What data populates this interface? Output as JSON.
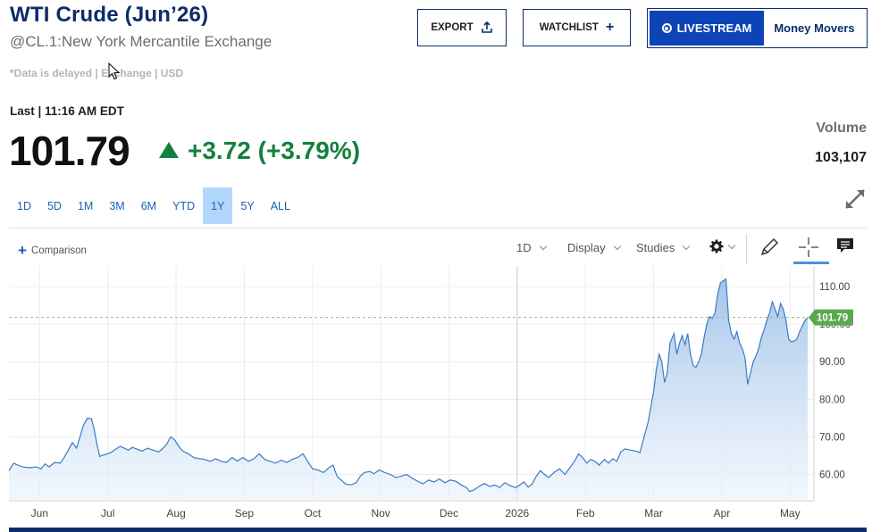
{
  "header": {
    "title": "WTI Crude (Jun’26)",
    "subtitle": "@CL.1:New York Mercantile Exchange",
    "delayed_note": "*Data is delayed | Exchange | USD"
  },
  "actions": {
    "export_label": "EXPORT",
    "watchlist_label": "WATCHLIST",
    "livestream_label": "LIVESTREAM",
    "money_movers_label": "Money Movers"
  },
  "quote": {
    "last_label": "Last | 11:16 AM EDT",
    "price": "101.79",
    "change": "+3.72 (+3.79%)",
    "volume_label": "Volume",
    "volume_value": "103,107",
    "up_color": "#15803d"
  },
  "ranges": [
    "1D",
    "5D",
    "1M",
    "3M",
    "6M",
    "YTD",
    "1Y",
    "5Y",
    "ALL"
  ],
  "active_range": "1Y",
  "toolbar": {
    "comparison_label": "Comparison",
    "interval_label": "1D",
    "display_label": "Display",
    "studies_label": "Studies"
  },
  "icons": {
    "export": "upload-icon",
    "watchlist": "plus-icon",
    "live": "radio-icon",
    "expand": "expand-icon",
    "settings": "gear-icon",
    "draw": "pencil-icon",
    "crosshair": "crosshair-icon",
    "comment": "comment-icon"
  },
  "chart_data": {
    "type": "area",
    "title": "",
    "xlabel": "",
    "ylabel": "",
    "ylim": [
      53,
      115
    ],
    "y_ticks": [
      "110.00",
      "100.00",
      "90.00",
      "80.00",
      "70.00",
      "60.00"
    ],
    "y_tick_values": [
      110,
      100,
      90,
      80,
      70,
      60
    ],
    "x_ticks": [
      "Jun",
      "Jul",
      "Aug",
      "Sep",
      "Oct",
      "Nov",
      "Dec",
      "2026",
      "Feb",
      "Mar",
      "Apr",
      "May"
    ],
    "x_tick_months": [
      1,
      2,
      3,
      4,
      5,
      6,
      7,
      8,
      9,
      10,
      11,
      12
    ],
    "x_month_index_range": [
      0.55,
      12.35
    ],
    "x_unit_note": "x values are months elapsed since May 1 2025",
    "last_value": 101.79,
    "last_value_label": "101.79",
    "series": [
      {
        "name": "",
        "color": "#3a7bc4",
        "points": [
          [
            0.55,
            61
          ],
          [
            0.62,
            63
          ],
          [
            0.68,
            62.5
          ],
          [
            0.75,
            62
          ],
          [
            0.85,
            61.8
          ],
          [
            0.95,
            62
          ],
          [
            1.02,
            61.5
          ],
          [
            1.08,
            62.8
          ],
          [
            1.14,
            62
          ],
          [
            1.22,
            63.2
          ],
          [
            1.3,
            63
          ],
          [
            1.36,
            64.5
          ],
          [
            1.42,
            66.5
          ],
          [
            1.48,
            68.5
          ],
          [
            1.54,
            67
          ],
          [
            1.6,
            70.5
          ],
          [
            1.64,
            73
          ],
          [
            1.7,
            75
          ],
          [
            1.76,
            74.8
          ],
          [
            1.8,
            72
          ],
          [
            1.84,
            68
          ],
          [
            1.88,
            64.8
          ],
          [
            1.94,
            65.2
          ],
          [
            2.0,
            65.5
          ],
          [
            2.06,
            66
          ],
          [
            2.12,
            66.8
          ],
          [
            2.18,
            67.5
          ],
          [
            2.24,
            67
          ],
          [
            2.3,
            66.5
          ],
          [
            2.36,
            67.2
          ],
          [
            2.42,
            66.8
          ],
          [
            2.5,
            66.2
          ],
          [
            2.58,
            67
          ],
          [
            2.66,
            66.5
          ],
          [
            2.74,
            66
          ],
          [
            2.8,
            66.8
          ],
          [
            2.86,
            68
          ],
          [
            2.92,
            70
          ],
          [
            2.98,
            69.2
          ],
          [
            3.04,
            67.5
          ],
          [
            3.1,
            66.2
          ],
          [
            3.18,
            65.5
          ],
          [
            3.26,
            64.5
          ],
          [
            3.34,
            64.2
          ],
          [
            3.42,
            64
          ],
          [
            3.5,
            63.5
          ],
          [
            3.58,
            64.2
          ],
          [
            3.66,
            63.5
          ],
          [
            3.74,
            63.2
          ],
          [
            3.82,
            64.5
          ],
          [
            3.9,
            63.6
          ],
          [
            3.98,
            64.5
          ],
          [
            4.06,
            63.5
          ],
          [
            4.14,
            64.2
          ],
          [
            4.22,
            65.5
          ],
          [
            4.3,
            64
          ],
          [
            4.38,
            63.5
          ],
          [
            4.46,
            63
          ],
          [
            4.54,
            63.8
          ],
          [
            4.62,
            63.2
          ],
          [
            4.7,
            64
          ],
          [
            4.78,
            64.5
          ],
          [
            4.86,
            65.5
          ],
          [
            4.94,
            63.2
          ],
          [
            5.0,
            61.5
          ],
          [
            5.08,
            61.2
          ],
          [
            5.16,
            60.5
          ],
          [
            5.24,
            61.8
          ],
          [
            5.3,
            62.5
          ],
          [
            5.36,
            59.5
          ],
          [
            5.42,
            58.5
          ],
          [
            5.48,
            57.5
          ],
          [
            5.56,
            57.2
          ],
          [
            5.64,
            57.8
          ],
          [
            5.7,
            59.5
          ],
          [
            5.76,
            60.5
          ],
          [
            5.84,
            60.8
          ],
          [
            5.9,
            60.2
          ],
          [
            5.98,
            61.2
          ],
          [
            6.06,
            60.5
          ],
          [
            6.14,
            60
          ],
          [
            6.22,
            59.2
          ],
          [
            6.3,
            59.5
          ],
          [
            6.38,
            60
          ],
          [
            6.46,
            59
          ],
          [
            6.54,
            58.2
          ],
          [
            6.62,
            57.5
          ],
          [
            6.7,
            58.5
          ],
          [
            6.78,
            58
          ],
          [
            6.86,
            58.8
          ],
          [
            6.94,
            57.8
          ],
          [
            7.02,
            58.5
          ],
          [
            7.1,
            58.2
          ],
          [
            7.18,
            57.2
          ],
          [
            7.26,
            56.5
          ],
          [
            7.3,
            55.5
          ],
          [
            7.36,
            55.8
          ],
          [
            7.44,
            56.8
          ],
          [
            7.52,
            57.6
          ],
          [
            7.6,
            56.8
          ],
          [
            7.68,
            57.2
          ],
          [
            7.74,
            56.5
          ],
          [
            7.82,
            57.8
          ],
          [
            7.9,
            57
          ],
          [
            7.98,
            56.5
          ],
          [
            8.04,
            57.2
          ],
          [
            8.1,
            58
          ],
          [
            8.16,
            56.6
          ],
          [
            8.22,
            57.5
          ],
          [
            8.28,
            59.5
          ],
          [
            8.34,
            61
          ],
          [
            8.4,
            60
          ],
          [
            8.46,
            59.2
          ],
          [
            8.54,
            60.5
          ],
          [
            8.62,
            61.5
          ],
          [
            8.7,
            60
          ],
          [
            8.78,
            62
          ],
          [
            8.84,
            63.5
          ],
          [
            8.9,
            65.5
          ],
          [
            8.96,
            64.5
          ],
          [
            9.02,
            63
          ],
          [
            9.08,
            64
          ],
          [
            9.14,
            63.5
          ],
          [
            9.2,
            62.5
          ],
          [
            9.28,
            64
          ],
          [
            9.34,
            63
          ],
          [
            9.4,
            64.2
          ],
          [
            9.46,
            63.5
          ],
          [
            9.52,
            66
          ],
          [
            9.58,
            66.8
          ],
          [
            9.66,
            66.5
          ],
          [
            9.74,
            66.2
          ],
          [
            9.8,
            65.8
          ],
          [
            9.86,
            70
          ],
          [
            9.92,
            74
          ],
          [
            9.96,
            78
          ],
          [
            10.0,
            82
          ],
          [
            10.04,
            88
          ],
          [
            10.08,
            92
          ],
          [
            10.12,
            90
          ],
          [
            10.16,
            84.5
          ],
          [
            10.2,
            87
          ],
          [
            10.24,
            95
          ],
          [
            10.3,
            97.5
          ],
          [
            10.34,
            92
          ],
          [
            10.38,
            95
          ],
          [
            10.42,
            97
          ],
          [
            10.46,
            94.5
          ],
          [
            10.5,
            97.5
          ],
          [
            10.54,
            92
          ],
          [
            10.58,
            89
          ],
          [
            10.62,
            88.5
          ],
          [
            10.66,
            90
          ],
          [
            10.7,
            92
          ],
          [
            10.74,
            96.5
          ],
          [
            10.78,
            100
          ],
          [
            10.82,
            102
          ],
          [
            10.86,
            101.5
          ],
          [
            10.9,
            103
          ],
          [
            10.94,
            108
          ],
          [
            10.98,
            111
          ],
          [
            11.02,
            111.5
          ],
          [
            11.06,
            112
          ],
          [
            11.1,
            101
          ],
          [
            11.14,
            97.5
          ],
          [
            11.18,
            96
          ],
          [
            11.22,
            98
          ],
          [
            11.26,
            95
          ],
          [
            11.3,
            93.5
          ],
          [
            11.34,
            91
          ],
          [
            11.38,
            84
          ],
          [
            11.42,
            87
          ],
          [
            11.46,
            90
          ],
          [
            11.5,
            91.5
          ],
          [
            11.54,
            93.5
          ],
          [
            11.58,
            96.5
          ],
          [
            11.62,
            98.5
          ],
          [
            11.66,
            101
          ],
          [
            11.7,
            103
          ],
          [
            11.74,
            106
          ],
          [
            11.78,
            104
          ],
          [
            11.82,
            102
          ],
          [
            11.86,
            105.5
          ],
          [
            11.9,
            104
          ],
          [
            11.94,
            101
          ],
          [
            11.98,
            96
          ],
          [
            12.02,
            95.3
          ],
          [
            12.06,
            95.5
          ],
          [
            12.1,
            96
          ],
          [
            12.14,
            98
          ],
          [
            12.18,
            99.5
          ],
          [
            12.22,
            101
          ],
          [
            12.26,
            101.79
          ]
        ]
      }
    ],
    "grid": true,
    "legend": "none"
  }
}
